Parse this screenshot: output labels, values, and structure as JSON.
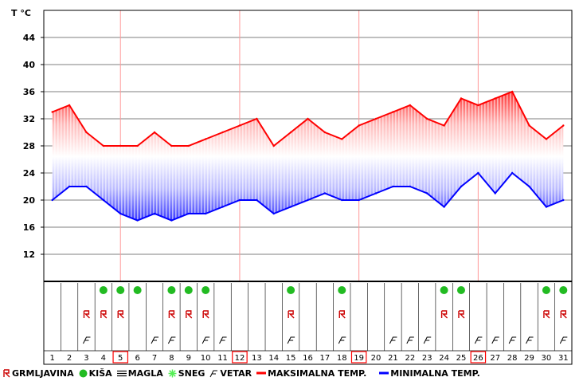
{
  "chart_data": {
    "type": "area",
    "ylabel": "T °C",
    "yticks": [
      12,
      16,
      20,
      24,
      28,
      32,
      36,
      40,
      44
    ],
    "ylim": [
      8,
      48
    ],
    "days": [
      1,
      2,
      3,
      4,
      5,
      6,
      7,
      8,
      9,
      10,
      11,
      12,
      13,
      14,
      15,
      16,
      17,
      18,
      19,
      20,
      21,
      22,
      23,
      24,
      25,
      26,
      27,
      28,
      29,
      30,
      31
    ],
    "highlighted_days": [
      5,
      12,
      19,
      26
    ],
    "series": [
      {
        "name": "MAKSIMALNA TEMP.",
        "color": "#ff0000",
        "values": [
          33,
          34,
          30,
          28,
          28,
          28,
          30,
          28,
          28,
          29,
          30,
          31,
          32,
          28,
          30,
          32,
          30,
          29,
          31,
          32,
          33,
          34,
          32,
          31,
          35,
          34,
          35,
          36,
          31,
          29,
          31
        ]
      },
      {
        "name": "MINIMALNA TEMP.",
        "color": "#0000ff",
        "values": [
          20,
          22,
          22,
          20,
          18,
          17,
          18,
          17,
          18,
          18,
          19,
          20,
          20,
          18,
          19,
          20,
          21,
          20,
          20,
          21,
          22,
          22,
          21,
          19,
          22,
          24,
          21,
          24,
          22,
          19,
          20
        ]
      }
    ],
    "events": {
      "kisa": [
        4,
        5,
        6,
        8,
        9,
        10,
        15,
        18,
        24,
        25,
        30,
        31
      ],
      "grmljavina": [
        3,
        4,
        5,
        8,
        9,
        10,
        15,
        18,
        24,
        25,
        30,
        31
      ],
      "vetar": [
        3,
        7,
        8,
        10,
        11,
        15,
        18,
        21,
        22,
        23,
        26,
        27,
        28,
        29,
        31
      ]
    }
  },
  "legend": {
    "grmljavina": "GRMLJAVINA",
    "kisa": "KIŠA",
    "magla": "MAGLA",
    "sneg": "SNEG",
    "vetar": "VETAR",
    "max": "MAKSIMALNA TEMP.",
    "min": "MINIMALNA TEMP."
  },
  "colors": {
    "max_line": "#ff0000",
    "min_line": "#0000ff",
    "rain": "#22bb22",
    "snow": "#55ee55",
    "thunder": "#cc0000",
    "grid": "#ff9999"
  }
}
